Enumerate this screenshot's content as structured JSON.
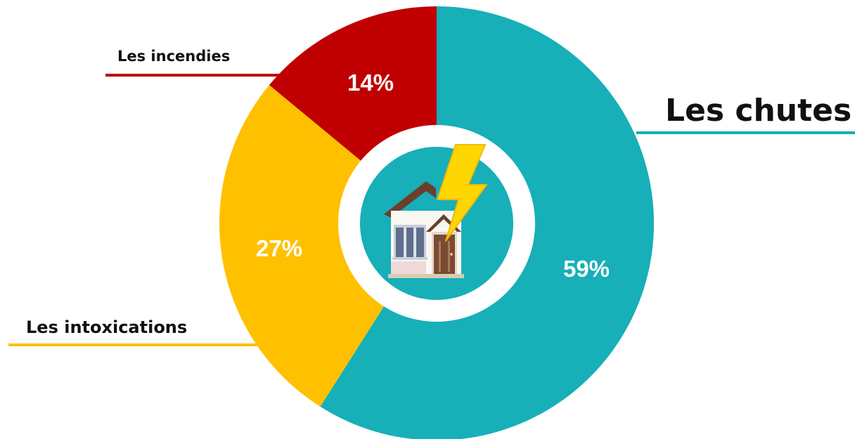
{
  "chart_data": {
    "type": "pie",
    "variant": "donut",
    "slices": [
      {
        "label": "Les chutes",
        "value": 59,
        "display": "59%",
        "color": "#17AFB8"
      },
      {
        "label": "Les intoxications",
        "value": 27,
        "display": "27%",
        "color": "#FFC000"
      },
      {
        "label": "Les incendies",
        "value": 14,
        "display": "14%",
        "color": "#C00000"
      }
    ],
    "center_icon": "house-lightning-icon",
    "colors": {
      "ring": "#ffffff",
      "center": "#17AFB8"
    }
  }
}
